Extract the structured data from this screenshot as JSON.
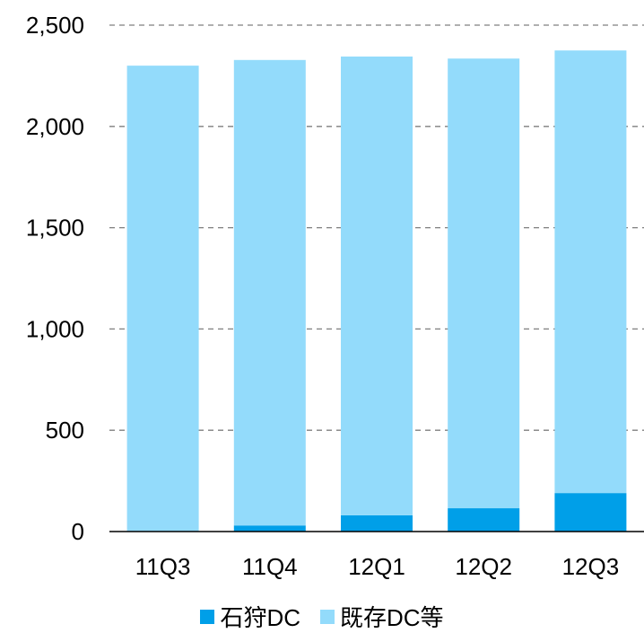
{
  "chart_data": {
    "type": "bar",
    "stacked": true,
    "categories": [
      "11Q3",
      "11Q4",
      "12Q1",
      "12Q2",
      "12Q3"
    ],
    "series": [
      {
        "name": "石狩DC",
        "color": "#009fe8",
        "values": [
          0,
          30,
          80,
          115,
          190
        ]
      },
      {
        "name": "既存DC等",
        "color": "#93dbfb",
        "values": [
          2300,
          2298,
          2265,
          2220,
          2185
        ]
      }
    ],
    "yticks": [
      "0",
      "500",
      "1,000",
      "1,500",
      "2,000",
      "2,500"
    ],
    "ylim": [
      0,
      2500
    ],
    "grid": true,
    "legend": "bottom"
  }
}
